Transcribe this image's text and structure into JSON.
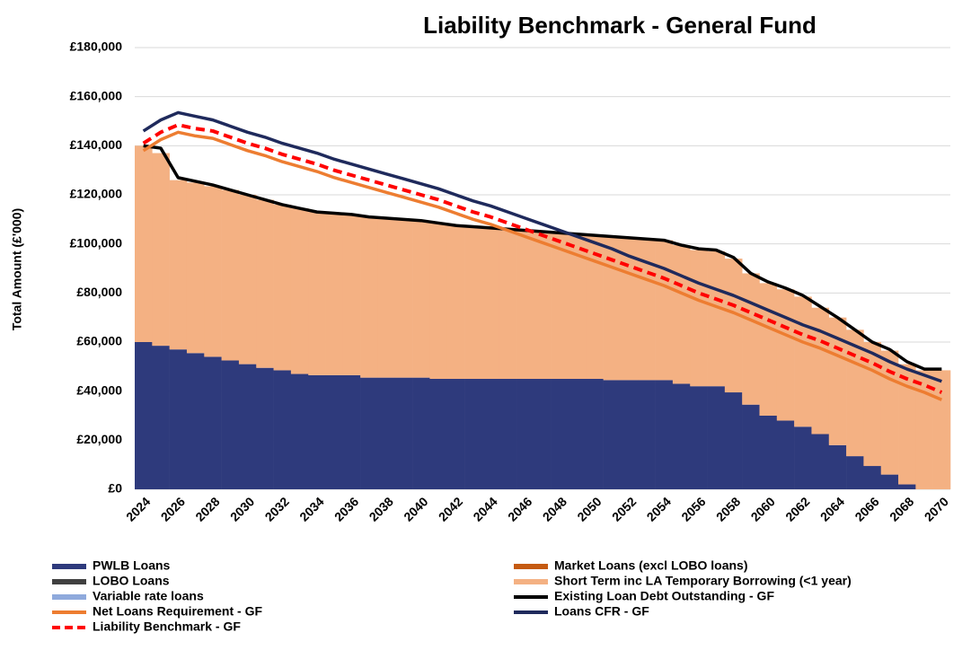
{
  "chart_data": {
    "type": "bar",
    "title": "Liability Benchmark - General Fund",
    "y_label": "Total Amount (£'000)",
    "categories": [
      "2024",
      null,
      "2026",
      null,
      "2028",
      null,
      "2030",
      null,
      "2032",
      null,
      "2034",
      null,
      "2036",
      null,
      "2038",
      null,
      "2040",
      null,
      "2042",
      null,
      "2044",
      null,
      "2046",
      null,
      "2048",
      null,
      "2050",
      null,
      "2052",
      null,
      "2054",
      null,
      "2056",
      null,
      "2058",
      null,
      "2060",
      null,
      "2062",
      null,
      "2064",
      null,
      "2066",
      null,
      "2068",
      null,
      "2070"
    ],
    "ylim": [
      0,
      180000
    ],
    "yticks": [
      {
        "value": 0,
        "label": "£0"
      },
      {
        "value": 20000,
        "label": "£20,000"
      },
      {
        "value": 40000,
        "label": "£40,000"
      },
      {
        "value": 60000,
        "label": "£60,000"
      },
      {
        "value": 80000,
        "label": "£80,000"
      },
      {
        "value": 100000,
        "label": "£100,000"
      },
      {
        "value": 120000,
        "label": "£120,000"
      },
      {
        "value": 140000,
        "label": "£140,000"
      },
      {
        "value": 160000,
        "label": "£160,000"
      },
      {
        "value": 180000,
        "label": "£180,000"
      }
    ],
    "grid": true,
    "stacked": true,
    "series": [
      {
        "name": "PWLB Loans",
        "type": "bar",
        "color": "#2e3a7c",
        "values": [
          60000,
          58500,
          57000,
          55500,
          54000,
          52500,
          51000,
          49500,
          48500,
          47000,
          46500,
          46500,
          46500,
          45500,
          45500,
          45500,
          45500,
          45000,
          45000,
          45000,
          45000,
          45000,
          45000,
          45000,
          45000,
          45000,
          45000,
          44500,
          44500,
          44500,
          44500,
          43000,
          42000,
          42000,
          39500,
          34500,
          30000,
          28000,
          25500,
          22500,
          18000,
          13500,
          9500,
          6000,
          2000,
          0,
          0
        ]
      },
      {
        "name": "Market Loans (excl LOBO loans)",
        "type": "bar",
        "color": "#c55a11",
        "values": [
          0,
          0,
          0,
          0,
          0,
          0,
          0,
          0,
          0,
          0,
          0,
          0,
          0,
          0,
          0,
          0,
          0,
          0,
          0,
          0,
          0,
          0,
          0,
          0,
          0,
          0,
          0,
          0,
          0,
          0,
          0,
          0,
          0,
          0,
          0,
          0,
          0,
          0,
          0,
          0,
          0,
          0,
          0,
          0,
          0,
          0,
          0
        ]
      },
      {
        "name": "LOBO Loans",
        "type": "bar",
        "color": "#404040",
        "values": [
          0,
          0,
          0,
          0,
          0,
          0,
          0,
          0,
          0,
          0,
          0,
          0,
          0,
          0,
          0,
          0,
          0,
          0,
          0,
          0,
          0,
          0,
          0,
          0,
          0,
          0,
          0,
          0,
          0,
          0,
          0,
          0,
          0,
          0,
          0,
          0,
          0,
          0,
          0,
          0,
          0,
          0,
          0,
          0,
          0,
          0,
          0
        ]
      },
      {
        "name": "Short Term inc LA Temporary Borrowing (<1 year)",
        "type": "bar",
        "color": "#f4b183",
        "values": [
          80000,
          78500,
          69000,
          69500,
          69500,
          69500,
          69000,
          68500,
          67500,
          67500,
          66500,
          66000,
          65500,
          65500,
          65000,
          64500,
          64000,
          63500,
          62500,
          62000,
          61500,
          61000,
          60500,
          60000,
          59500,
          59000,
          58500,
          58500,
          58000,
          57500,
          57000,
          56500,
          55500,
          55000,
          54500,
          53500,
          54000,
          53500,
          53000,
          51500,
          52000,
          51500,
          50500,
          50500,
          49000,
          48500,
          48500
        ]
      },
      {
        "name": "Variable rate loans",
        "type": "bar",
        "color": "#8faadc",
        "values": [
          0,
          0,
          0,
          0,
          0,
          0,
          0,
          0,
          0,
          0,
          0,
          0,
          0,
          0,
          0,
          0,
          0,
          0,
          0,
          0,
          0,
          0,
          0,
          0,
          0,
          0,
          0,
          0,
          0,
          0,
          0,
          0,
          0,
          0,
          0,
          0,
          0,
          0,
          0,
          0,
          0,
          0,
          0,
          0,
          0,
          0,
          0
        ]
      },
      {
        "name": "Existing Loan Debt Outstanding - GF",
        "type": "line",
        "color": "#000000",
        "values": [
          140000,
          139000,
          127000,
          125500,
          124000,
          122000,
          120000,
          118000,
          116000,
          114500,
          113000,
          112500,
          112000,
          111000,
          110500,
          110000,
          109500,
          108500,
          107500,
          107000,
          106500,
          106000,
          105500,
          105000,
          104500,
          104000,
          103500,
          103000,
          102500,
          102000,
          101500,
          99500,
          98000,
          97500,
          94500,
          88000,
          84500,
          82000,
          79000,
          74500,
          70000,
          65000,
          60000,
          57000,
          52000,
          49000,
          49000
        ]
      },
      {
        "name": "Net Loans Requirement - GF",
        "type": "line",
        "color": "#ed7d31",
        "values": [
          138000,
          142500,
          145500,
          144000,
          143000,
          140500,
          138000,
          136000,
          133500,
          131500,
          129500,
          127000,
          125000,
          123000,
          121000,
          119000,
          117000,
          115000,
          112500,
          110000,
          108000,
          105500,
          103000,
          100500,
          98000,
          95500,
          93000,
          90500,
          88000,
          85500,
          83000,
          80000,
          77000,
          74500,
          72000,
          69000,
          66000,
          63000,
          60000,
          57500,
          54500,
          51500,
          48500,
          45000,
          42000,
          39500,
          36500
        ]
      },
      {
        "name": "Loans CFR - GF",
        "type": "line",
        "color": "#1f2a5c",
        "values": [
          146000,
          150500,
          153500,
          152000,
          150500,
          148000,
          145500,
          143500,
          141000,
          139000,
          137000,
          134500,
          132500,
          130500,
          128500,
          126500,
          124500,
          122500,
          120000,
          117500,
          115500,
          113000,
          110500,
          108000,
          105500,
          103000,
          100500,
          98000,
          95000,
          92500,
          90000,
          87000,
          84000,
          81500,
          79000,
          76000,
          73000,
          70000,
          67000,
          64500,
          61500,
          58500,
          55500,
          52000,
          49000,
          46500,
          44000
        ]
      },
      {
        "name": "Liability Benchmark - GF",
        "type": "line",
        "style": "dashed",
        "color": "#ff0000",
        "values": [
          141000,
          145500,
          148500,
          147000,
          146000,
          143500,
          141000,
          139000,
          136500,
          134500,
          132500,
          130000,
          128000,
          126000,
          124000,
          122000,
          120000,
          118000,
          115500,
          113000,
          111000,
          108500,
          106000,
          103500,
          101000,
          98500,
          96000,
          93500,
          91000,
          88500,
          86000,
          83000,
          80000,
          77500,
          75000,
          72000,
          69000,
          66000,
          63000,
          60500,
          57500,
          54500,
          51500,
          48000,
          45000,
          42500,
          39500
        ]
      }
    ]
  }
}
